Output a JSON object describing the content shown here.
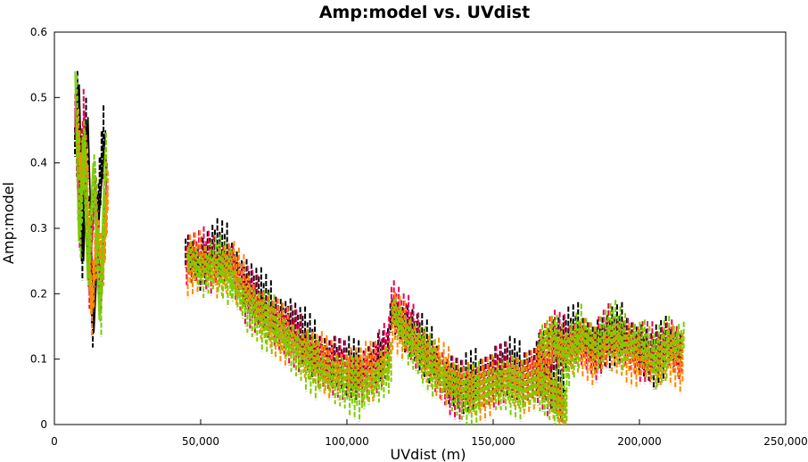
{
  "chart_data": {
    "type": "scatter",
    "title": "Amp:model vs. UVdist",
    "xlabel": "UVdist (m)",
    "ylabel": "Amp:model",
    "xlim": [
      0,
      250000
    ],
    "ylim": [
      0,
      0.6
    ],
    "x_ticks": [
      0,
      50000,
      100000,
      150000,
      200000,
      250000
    ],
    "x_tick_labels": [
      "0",
      "50,000",
      "100,000",
      "150,000",
      "200,000",
      "250,000"
    ],
    "y_ticks": [
      0,
      0.1,
      0.2,
      0.3,
      0.4,
      0.5,
      0.6
    ],
    "y_tick_labels": [
      "0",
      "0.1",
      "0.2",
      "0.3",
      "0.4",
      "0.5",
      "0.6"
    ],
    "grid": false,
    "legend": "none",
    "colors": [
      "#000000",
      "#e8005a",
      "#ff8a00",
      "#7acd00"
    ],
    "series": [
      {
        "color": "#000000",
        "segments": [
          {
            "x": [
              7500,
              8500,
              10000,
              11500,
              13500,
              15500,
              17500
            ],
            "y": [
              0.43,
              0.52,
              0.25,
              0.47,
              0.14,
              0.33,
              0.45
            ]
          },
          {
            "x": [
              45000,
              50000,
              55000,
              60000,
              65000,
              70000,
              75000,
              80000,
              85000,
              90000,
              95000,
              100000,
              105000,
              110000,
              115000
            ],
            "y": [
              0.27,
              0.24,
              0.27,
              0.26,
              0.22,
              0.2,
              0.17,
              0.16,
              0.14,
              0.11,
              0.1,
              0.09,
              0.08,
              0.1,
              0.11
            ]
          },
          {
            "x": [
              115000,
              120000,
              125000,
              130000,
              135000,
              140000,
              145000,
              150000,
              155000,
              160000,
              165000,
              170000,
              175000
            ],
            "y": [
              0.17,
              0.15,
              0.13,
              0.1,
              0.07,
              0.06,
              0.07,
              0.08,
              0.09,
              0.08,
              0.09,
              0.07,
              0.05
            ]
          },
          {
            "x": [
              165000,
              170000,
              175000,
              180000,
              185000,
              190000,
              195000,
              200000,
              205000,
              210000,
              215000
            ],
            "y": [
              0.11,
              0.12,
              0.13,
              0.14,
              0.12,
              0.13,
              0.14,
              0.12,
              0.1,
              0.12,
              0.11
            ]
          }
        ]
      },
      {
        "color": "#e8005a",
        "segments": [
          {
            "x": [
              7200,
              8700,
              10300,
              12000,
              14000,
              16000,
              18000
            ],
            "y": [
              0.5,
              0.3,
              0.48,
              0.2,
              0.38,
              0.18,
              0.4
            ]
          },
          {
            "x": [
              45000,
              50000,
              55000,
              60000,
              65000,
              70000,
              75000,
              80000,
              85000,
              90000,
              95000,
              100000,
              105000,
              110000,
              115000
            ],
            "y": [
              0.25,
              0.26,
              0.24,
              0.25,
              0.2,
              0.18,
              0.16,
              0.14,
              0.12,
              0.1,
              0.09,
              0.08,
              0.07,
              0.09,
              0.12
            ]
          },
          {
            "x": [
              115000,
              120000,
              125000,
              130000,
              135000,
              140000,
              145000,
              150000,
              155000,
              160000,
              165000,
              170000,
              175000
            ],
            "y": [
              0.19,
              0.16,
              0.12,
              0.09,
              0.06,
              0.05,
              0.06,
              0.07,
              0.08,
              0.07,
              0.08,
              0.05,
              0.02
            ]
          },
          {
            "x": [
              165000,
              170000,
              175000,
              180000,
              185000,
              190000,
              195000,
              200000,
              205000,
              210000,
              215000
            ],
            "y": [
              0.1,
              0.13,
              0.12,
              0.13,
              0.11,
              0.14,
              0.13,
              0.11,
              0.11,
              0.13,
              0.1
            ]
          }
        ]
      },
      {
        "color": "#ff8a00",
        "segments": [
          {
            "x": [
              7600,
              9200,
              10800,
              12500,
              14500,
              16500,
              18200
            ],
            "y": [
              0.46,
              0.36,
              0.42,
              0.17,
              0.3,
              0.24,
              0.36
            ]
          },
          {
            "x": [
              45000,
              50000,
              55000,
              60000,
              65000,
              70000,
              75000,
              80000,
              85000,
              90000,
              95000,
              100000,
              105000,
              110000,
              115000
            ],
            "y": [
              0.24,
              0.25,
              0.23,
              0.24,
              0.21,
              0.17,
              0.15,
              0.13,
              0.11,
              0.1,
              0.08,
              0.08,
              0.08,
              0.08,
              0.1
            ]
          },
          {
            "x": [
              115000,
              120000,
              125000,
              130000,
              135000,
              140000,
              145000,
              150000,
              155000,
              160000,
              165000,
              170000,
              175000
            ],
            "y": [
              0.16,
              0.14,
              0.11,
              0.09,
              0.07,
              0.06,
              0.05,
              0.06,
              0.07,
              0.06,
              0.07,
              0.05,
              0.01
            ]
          },
          {
            "x": [
              165000,
              170000,
              175000,
              180000,
              185000,
              190000,
              195000,
              200000,
              205000,
              210000,
              215000
            ],
            "y": [
              0.09,
              0.12,
              0.11,
              0.12,
              0.1,
              0.12,
              0.11,
              0.1,
              0.09,
              0.11,
              0.09
            ]
          }
        ]
      },
      {
        "color": "#7acd00",
        "segments": [
          {
            "x": [
              7000,
              8300,
              9700,
              11300,
              13200,
              15300,
              17300
            ],
            "y": [
              0.54,
              0.28,
              0.44,
              0.22,
              0.4,
              0.16,
              0.42
            ]
          },
          {
            "x": [
              45000,
              50000,
              55000,
              60000,
              65000,
              70000,
              75000,
              80000,
              85000,
              90000,
              95000,
              100000,
              105000,
              110000,
              115000
            ],
            "y": [
              0.26,
              0.23,
              0.25,
              0.22,
              0.18,
              0.16,
              0.15,
              0.12,
              0.1,
              0.08,
              0.07,
              0.06,
              0.05,
              0.07,
              0.09
            ]
          },
          {
            "x": [
              115000,
              120000,
              125000,
              130000,
              135000,
              140000,
              145000,
              150000,
              155000,
              160000,
              165000,
              170000,
              175000
            ],
            "y": [
              0.18,
              0.13,
              0.11,
              0.08,
              0.06,
              0.04,
              0.05,
              0.06,
              0.06,
              0.05,
              0.06,
              0.04,
              0.03
            ]
          },
          {
            "x": [
              165000,
              170000,
              175000,
              180000,
              185000,
              190000,
              195000,
              200000,
              205000,
              210000,
              215000
            ],
            "y": [
              0.12,
              0.14,
              0.1,
              0.14,
              0.12,
              0.15,
              0.12,
              0.13,
              0.1,
              0.12,
              0.13
            ]
          }
        ]
      }
    ]
  }
}
